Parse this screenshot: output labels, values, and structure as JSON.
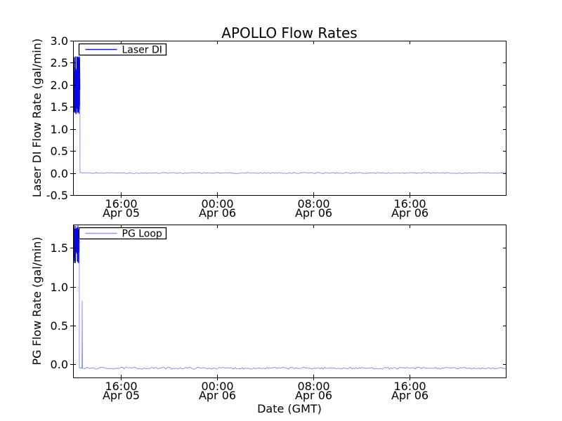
{
  "figure": {
    "title": "APOLLO Flow Rates",
    "xlabel": "Date (GMT)",
    "bg_color": "#ffffff",
    "axis_color": "#000000",
    "line_color": "#0000ff",
    "flat_line_apparent_color": "#7a7af2"
  },
  "chart_data": [
    {
      "type": "line",
      "title": "APOLLO Flow Rates",
      "ylabel": "Laser DI Flow Rate (gal/min)",
      "xlabel": "",
      "legend": [
        {
          "label": "Laser DI",
          "sample_color": "#1515e6"
        }
      ],
      "legend_loc": "upper left",
      "ylim": [
        -0.5,
        3.0
      ],
      "yticks": [
        3.0,
        2.5,
        2.0,
        1.5,
        1.0,
        0.5,
        0.0,
        -0.5
      ],
      "x_span_hours": 36,
      "x_range_note": "approx Apr 05 12:00 GMT to Apr 07 00:00 GMT",
      "grid": false,
      "series": [
        {
          "name": "Laser DI",
          "color": "#0000ff",
          "behavior": "noisy burst then zero",
          "burst": {
            "start_h": 0.0,
            "end_h": 0.55,
            "min": 1.38,
            "max": 2.4,
            "peak": 2.65,
            "dip": 1.33
          },
          "drop_to": 0.0,
          "steady": {
            "value": 0.0,
            "from_h": 0.58,
            "to_h": 36,
            "noise": 0.012
          }
        }
      ]
    },
    {
      "type": "line",
      "title": "",
      "ylabel": "PG Flow Rate (gal/min)",
      "xlabel": "Date (GMT)",
      "legend": [
        {
          "label": "PG Loop",
          "sample_color": "#9a9aee"
        }
      ],
      "legend_loc": "upper left",
      "ylim": [
        -0.17,
        1.8
      ],
      "yticks": [
        1.5,
        1.0,
        0.5,
        0.0
      ],
      "x_span_hours": 36,
      "x_range_note": "approx Apr 05 12:00 GMT to Apr 07 00:00 GMT",
      "grid": false,
      "series": [
        {
          "name": "PG Loop",
          "color": "#0000ff",
          "behavior": "noisy burst, drop below zero, single spike, then flat",
          "burst": {
            "start_h": 0.0,
            "end_h": 0.5,
            "min": 1.42,
            "max": 1.75,
            "peak": 1.79,
            "dip": 1.3
          },
          "drop_to": -0.05,
          "spike": {
            "at_h": 0.76,
            "value": 0.82
          },
          "steady": {
            "value": -0.05,
            "from_h": 0.52,
            "to_h": 36,
            "noise": 0.012
          }
        }
      ]
    }
  ],
  "xticks": [
    {
      "time": "16:00",
      "date": "Apr 05",
      "hour": 4
    },
    {
      "time": "00:00",
      "date": "Apr 06",
      "hour": 12
    },
    {
      "time": "08:00",
      "date": "Apr 06",
      "hour": 20
    },
    {
      "time": "16:00",
      "date": "Apr 06",
      "hour": 28
    }
  ]
}
